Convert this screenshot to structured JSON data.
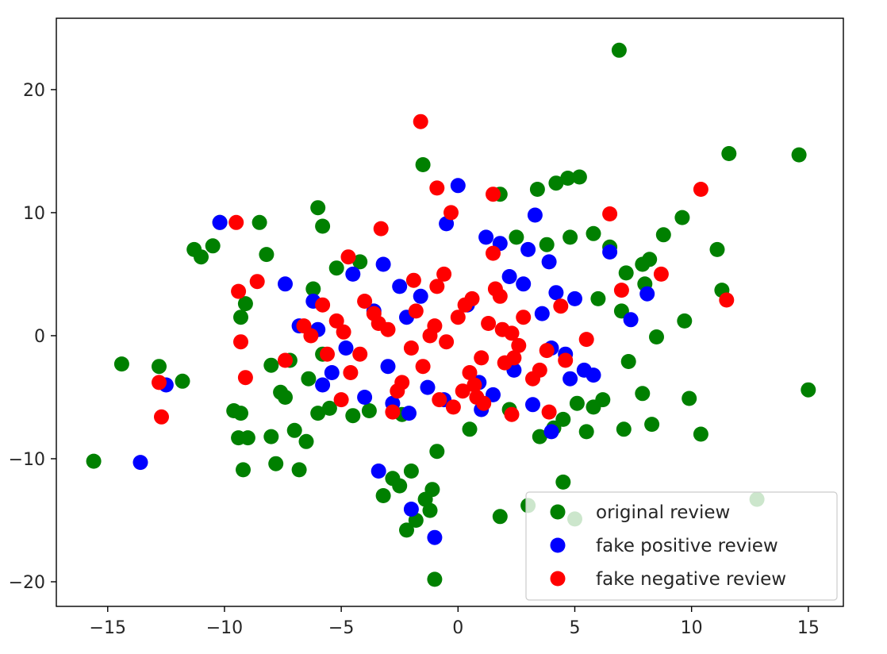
{
  "chart_data": {
    "type": "scatter",
    "title": "",
    "xlabel": "",
    "ylabel": "",
    "xlim": [
      -17.2,
      16.5
    ],
    "ylim": [
      -22.0,
      25.8
    ],
    "xticks": [
      -15,
      -10,
      -5,
      0,
      5,
      10,
      15
    ],
    "yticks": [
      -20,
      -10,
      0,
      10,
      20
    ],
    "xtick_labels": [
      "−15",
      "−10",
      "−5",
      "0",
      "5",
      "10",
      "15"
    ],
    "ytick_labels": [
      "−20",
      "−10",
      "0",
      "10",
      "20"
    ],
    "grid": false,
    "legend_position": "lower-right",
    "series": [
      {
        "name": "original review",
        "color": "#008000",
        "x": [
          6.9,
          11.6,
          14.6,
          -1.0,
          -1.5,
          4.7,
          3.4,
          15.0,
          12.8,
          5.0,
          4.5,
          1.8,
          -15.6,
          -14.4,
          -12.8,
          -11.8,
          -11.0,
          -10.5,
          -9.6,
          -9.3,
          -9.2,
          -9.0,
          -8.5,
          -8.2,
          -8.0,
          -7.8,
          -7.0,
          -6.8,
          -6.5,
          -6.0,
          -5.8,
          -10.2,
          -11.3,
          -9.4,
          9.6,
          8.8,
          8.2,
          9.9,
          10.4,
          11.1,
          11.3,
          9.7,
          8.0,
          7.9,
          8.3,
          7.1,
          7.3,
          8.5,
          -1.8,
          -2.2,
          -1.4,
          -1.2,
          -2.5,
          -2.0,
          -0.9,
          -3.2,
          -2.8,
          -1.1,
          1.8,
          3.0,
          4.2,
          5.2,
          -9.3,
          -9.1,
          -8.0,
          -7.6,
          -7.4,
          -6.0,
          -5.5,
          -4.5,
          -3.8,
          -2.4,
          0.5,
          2.2,
          3.5,
          4.1,
          5.5,
          6.2,
          5.8,
          7.2,
          7.9,
          -6.2,
          -5.2,
          -4.2,
          2.5,
          4.8,
          3.8,
          6.5,
          6.0,
          7.0,
          -7.2,
          -6.4,
          -5.8,
          5.1,
          5.8,
          4.5
        ],
        "y": [
          23.2,
          14.8,
          14.7,
          -19.8,
          13.9,
          12.8,
          11.9,
          -4.4,
          -13.3,
          -14.9,
          -11.9,
          -14.7,
          -10.2,
          -2.3,
          -2.5,
          -3.7,
          6.4,
          7.3,
          -6.1,
          -6.3,
          -10.9,
          -8.3,
          9.2,
          6.6,
          -8.2,
          -10.4,
          -7.7,
          -10.9,
          -8.6,
          10.4,
          8.9,
          9.2,
          7.0,
          -8.3,
          9.6,
          8.2,
          6.2,
          -5.1,
          -8.0,
          7.0,
          3.7,
          1.2,
          4.2,
          -4.7,
          -7.2,
          -7.6,
          -2.1,
          -0.1,
          -15.0,
          -15.8,
          -13.3,
          -14.2,
          -12.2,
          -11.0,
          -9.4,
          -13.0,
          -11.6,
          -12.5,
          11.5,
          -13.8,
          12.4,
          12.9,
          1.5,
          2.6,
          -2.4,
          -4.6,
          -5.0,
          -6.3,
          -5.9,
          -6.5,
          -6.1,
          -6.4,
          -7.6,
          -6.0,
          -8.2,
          -7.5,
          -7.8,
          -5.2,
          8.3,
          5.1,
          5.8,
          3.8,
          5.5,
          6.0,
          8.0,
          8.0,
          7.4,
          7.2,
          3.0,
          2.0,
          -2.0,
          -3.5,
          -1.5,
          -5.5,
          -5.8,
          -6.8
        ]
      },
      {
        "name": "fake positive review",
        "color": "#0000ff",
        "x": [
          -10.2,
          -12.5,
          -13.6,
          -3.4,
          -2.0,
          -1.0,
          0.0,
          3.3,
          3.9,
          4.0,
          -7.4,
          -6.2,
          8.1,
          7.4,
          6.5,
          -0.5,
          1.2,
          1.8,
          3.0,
          -4.5,
          -3.2,
          -2.5,
          2.2,
          4.2,
          5.0,
          -6.0,
          -4.8,
          -3.6,
          -2.2,
          -1.6,
          0.4,
          2.8,
          3.6,
          4.6,
          5.4,
          -5.8,
          -4.0,
          -2.8,
          1.5,
          3.2,
          4.8,
          -6.8,
          -5.4,
          -3.0,
          -1.3,
          0.9,
          2.4,
          4.0,
          5.8,
          -2.1,
          -0.6,
          1.0
        ],
        "y": [
          9.2,
          -4.0,
          -10.3,
          -11.0,
          -14.1,
          -16.4,
          12.2,
          9.8,
          6.0,
          -7.8,
          4.2,
          2.8,
          3.4,
          1.3,
          6.8,
          9.1,
          8.0,
          7.5,
          7.0,
          5.0,
          5.8,
          4.0,
          4.8,
          3.5,
          3.0,
          0.5,
          -1.0,
          2.0,
          1.5,
          3.2,
          2.5,
          4.2,
          1.8,
          -1.5,
          -2.8,
          -4.0,
          -5.0,
          -5.5,
          -4.8,
          -5.6,
          -3.5,
          0.8,
          -3.0,
          -2.5,
          -4.2,
          -3.8,
          -2.8,
          -1.0,
          -3.2,
          -6.3,
          -5.2,
          -6.0
        ]
      },
      {
        "name": "fake negative review",
        "color": "#ff0000",
        "x": [
          -1.6,
          10.4,
          11.5,
          -0.9,
          1.5,
          6.5,
          -0.3,
          -3.3,
          -9.5,
          -8.6,
          -9.4,
          -12.8,
          -12.7,
          -9.3,
          -9.1,
          8.7,
          7.0,
          1.5,
          -4.7,
          -4.0,
          0.8,
          -0.8,
          4.4,
          3.9,
          2.3,
          -2.8,
          -6.3,
          -5.6,
          -7.4,
          -5.0,
          2.3,
          -1.0,
          0.0,
          -2.0,
          -1.5,
          0.5,
          1.0,
          -0.5,
          0.3,
          -3.0,
          2.6,
          1.8,
          3.2,
          -4.2,
          -0.9,
          1.3,
          2.0,
          -1.8,
          -2.4,
          0.7,
          1.6,
          3.8,
          -3.6,
          -5.2,
          -4.6,
          4.6,
          5.5,
          -6.6,
          -5.8,
          2.8,
          -0.2,
          -1.2,
          0.2,
          1.1,
          3.5,
          -2.6,
          -3.4,
          0.6,
          -0.6,
          -1.9,
          1.9,
          2.4,
          -4.9
        ],
        "y": [
          17.4,
          11.9,
          2.9,
          12.0,
          11.5,
          9.9,
          10.0,
          8.7,
          9.2,
          4.4,
          3.6,
          -3.8,
          -6.6,
          -0.5,
          -3.4,
          5.0,
          3.7,
          6.7,
          6.4,
          2.8,
          -5.0,
          -5.2,
          2.4,
          -6.2,
          -6.4,
          -6.2,
          0.0,
          -1.5,
          -2.0,
          -5.2,
          0.2,
          0.8,
          1.5,
          -1.0,
          -2.5,
          -3.0,
          -1.8,
          -0.5,
          2.5,
          0.5,
          -0.8,
          3.2,
          -3.5,
          -1.5,
          4.0,
          1.0,
          -2.2,
          2.0,
          -3.8,
          -4.0,
          3.8,
          -1.2,
          1.8,
          1.2,
          -3.0,
          -2.0,
          -0.3,
          0.8,
          2.5,
          1.5,
          -5.8,
          0.0,
          -4.5,
          -5.5,
          -2.8,
          -4.5,
          1.0,
          3.0,
          5.0,
          4.5,
          0.5,
          -1.8,
          0.3
        ]
      }
    ]
  }
}
